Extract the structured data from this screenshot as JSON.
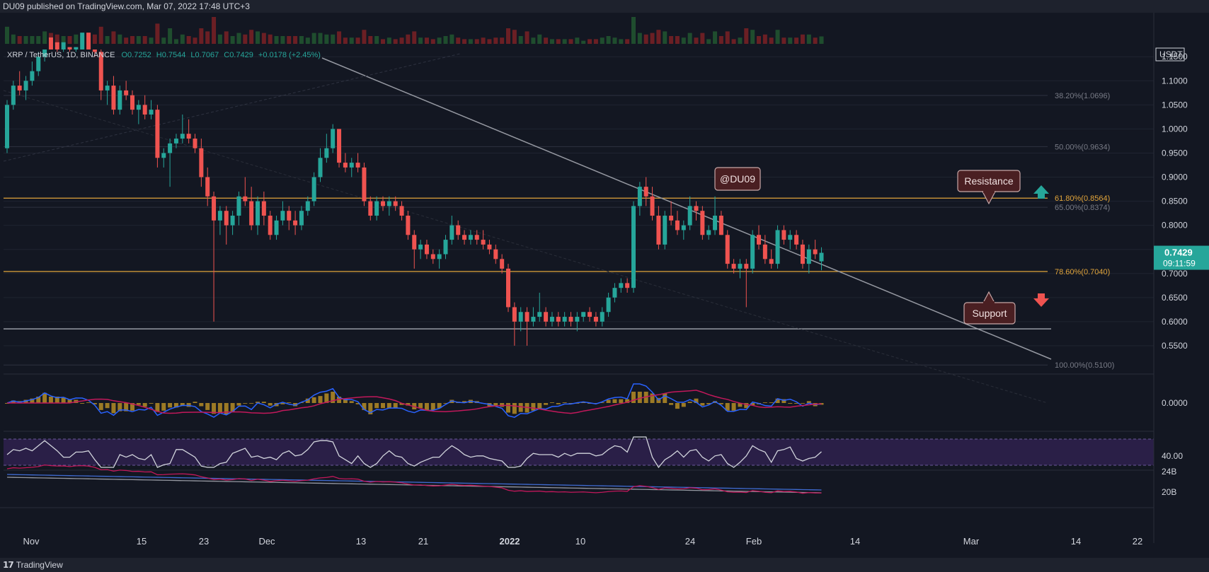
{
  "header": {
    "published": "DU09 published on TradingView.com, Mar 07, 2022 17:48 UTC+3"
  },
  "footer": {
    "brand": "TradingView"
  },
  "legend": {
    "symbol": "XRP / TetherUS, 1D, BINANCE",
    "open": "O0.7252",
    "high": "H0.7544",
    "low": "L0.7067",
    "close": "C0.7429",
    "change": "+0.0178 (+2.45%)"
  },
  "price_axis": {
    "currency": "USDT",
    "ticks": [
      "1.1500",
      "1.1000",
      "1.0500",
      "1.0000",
      "0.9500",
      "0.9000",
      "0.8500",
      "0.8000",
      "0.7500",
      "0.7000",
      "0.6500",
      "0.6000",
      "0.5500"
    ],
    "tick_values": [
      1.15,
      1.1,
      1.05,
      1.0,
      0.95,
      0.9,
      0.85,
      0.8,
      0.75,
      0.7,
      0.65,
      0.6,
      0.55
    ],
    "last_price": "0.7429",
    "countdown": "09:11:59",
    "macd_tick": "0.0000",
    "rsi_tick": "40.00",
    "vol_ticks": [
      "24B",
      "20B"
    ]
  },
  "time_axis": {
    "labels": [
      "Nov",
      "15",
      "23",
      "Dec",
      "13",
      "21",
      "2022",
      "10",
      "24",
      "Feb",
      "14",
      "Mar",
      "14",
      "22"
    ],
    "bold": [
      "2022"
    ]
  },
  "fib_levels": [
    {
      "label": "38.20%(1.0696)",
      "price": 1.0696,
      "color": "#787b86"
    },
    {
      "label": "50.00%(0.9634)",
      "price": 0.9634,
      "color": "#787b86"
    },
    {
      "label": "61.80%(0.8564)",
      "price": 0.8564,
      "color": "#e2a53b"
    },
    {
      "label": "65.00%(0.8374)",
      "price": 0.8374,
      "color": "#787b86"
    },
    {
      "label": "78.60%(0.7040)",
      "price": 0.704,
      "color": "#e2a53b"
    },
    {
      "label": "100.00%(0.5100)",
      "price": 0.51,
      "color": "#787b86"
    }
  ],
  "annotations": {
    "watermark": "@DU09",
    "resistance": "Resistance",
    "support": "Support"
  },
  "colors": {
    "up": "#26a69a",
    "down": "#ef5350",
    "fib": "#e2a53b",
    "bg": "#131722",
    "label_box": "#4a1f22",
    "label_border": "#c7a7a7"
  },
  "chart_data": {
    "type": "candlestick",
    "title": "XRP / TetherUS, 1D, BINANCE",
    "interval": "1D",
    "x_range": [
      "2021-11-01",
      "2022-03-23"
    ],
    "ylim": [
      0.5,
      1.165
    ],
    "note": "",
    "ohlc": [
      [
        0.96,
        1.06,
        0.95,
        1.05
      ],
      [
        1.05,
        1.1,
        1.04,
        1.09
      ],
      [
        1.09,
        1.12,
        1.07,
        1.08
      ],
      [
        1.08,
        1.11,
        1.06,
        1.1
      ],
      [
        1.1,
        1.14,
        1.09,
        1.12
      ],
      [
        1.12,
        1.16,
        1.11,
        1.15
      ],
      [
        1.15,
        1.22,
        1.14,
        1.21
      ],
      [
        1.21,
        1.24,
        1.17,
        1.19
      ],
      [
        1.19,
        1.22,
        1.16,
        1.18
      ],
      [
        1.18,
        1.21,
        1.16,
        1.19
      ],
      [
        1.19,
        1.21,
        1.16,
        1.17
      ],
      [
        1.17,
        1.22,
        1.16,
        1.2
      ],
      [
        1.2,
        1.23,
        1.18,
        1.21
      ],
      [
        1.21,
        1.25,
        1.19,
        1.2
      ],
      [
        1.2,
        1.21,
        1.15,
        1.16
      ],
      [
        1.16,
        1.17,
        1.06,
        1.08
      ],
      [
        1.08,
        1.1,
        1.05,
        1.09
      ],
      [
        1.09,
        1.11,
        1.03,
        1.04
      ],
      [
        1.04,
        1.09,
        1.03,
        1.08
      ],
      [
        1.08,
        1.1,
        1.06,
        1.07
      ],
      [
        1.07,
        1.08,
        1.03,
        1.04
      ],
      [
        1.04,
        1.06,
        1.01,
        1.05
      ],
      [
        1.05,
        1.07,
        1.02,
        1.03
      ],
      [
        1.03,
        1.06,
        1.02,
        1.04
      ],
      [
        1.04,
        1.05,
        0.92,
        0.94
      ],
      [
        0.94,
        0.96,
        0.92,
        0.95
      ],
      [
        0.95,
        0.98,
        0.88,
        0.97
      ],
      [
        0.97,
        0.99,
        0.96,
        0.98
      ],
      [
        0.98,
        1.03,
        0.97,
        0.99
      ],
      [
        0.99,
        1.02,
        0.97,
        0.98
      ],
      [
        0.98,
        0.99,
        0.95,
        0.96
      ],
      [
        0.96,
        0.98,
        0.88,
        0.9
      ],
      [
        0.9,
        0.92,
        0.84,
        0.86
      ],
      [
        0.86,
        0.87,
        0.6,
        0.81
      ],
      [
        0.81,
        0.84,
        0.78,
        0.83
      ],
      [
        0.83,
        0.84,
        0.76,
        0.8
      ],
      [
        0.8,
        0.83,
        0.78,
        0.82
      ],
      [
        0.82,
        0.87,
        0.8,
        0.86
      ],
      [
        0.86,
        0.9,
        0.84,
        0.85
      ],
      [
        0.85,
        0.88,
        0.79,
        0.8
      ],
      [
        0.8,
        0.86,
        0.78,
        0.85
      ],
      [
        0.85,
        0.87,
        0.8,
        0.82
      ],
      [
        0.82,
        0.83,
        0.77,
        0.78
      ],
      [
        0.78,
        0.82,
        0.77,
        0.81
      ],
      [
        0.81,
        0.85,
        0.8,
        0.83
      ],
      [
        0.83,
        0.84,
        0.79,
        0.81
      ],
      [
        0.81,
        0.83,
        0.78,
        0.8
      ],
      [
        0.8,
        0.84,
        0.79,
        0.83
      ],
      [
        0.83,
        0.86,
        0.82,
        0.85
      ],
      [
        0.85,
        0.91,
        0.84,
        0.9
      ],
      [
        0.9,
        0.96,
        0.89,
        0.94
      ],
      [
        0.94,
        0.99,
        0.93,
        0.96
      ],
      [
        0.96,
        1.01,
        0.95,
        1.0
      ],
      [
        1.0,
        1.0,
        0.92,
        0.93
      ],
      [
        0.93,
        0.95,
        0.91,
        0.92
      ],
      [
        0.92,
        0.94,
        0.9,
        0.93
      ],
      [
        0.93,
        0.95,
        0.91,
        0.92
      ],
      [
        0.92,
        0.93,
        0.84,
        0.85
      ],
      [
        0.85,
        0.86,
        0.81,
        0.82
      ],
      [
        0.82,
        0.86,
        0.81,
        0.85
      ],
      [
        0.85,
        0.86,
        0.83,
        0.84
      ],
      [
        0.84,
        0.86,
        0.82,
        0.85
      ],
      [
        0.85,
        0.86,
        0.83,
        0.84
      ],
      [
        0.84,
        0.85,
        0.81,
        0.82
      ],
      [
        0.82,
        0.83,
        0.77,
        0.78
      ],
      [
        0.78,
        0.79,
        0.71,
        0.75
      ],
      [
        0.75,
        0.77,
        0.73,
        0.76
      ],
      [
        0.76,
        0.77,
        0.73,
        0.74
      ],
      [
        0.74,
        0.75,
        0.72,
        0.73
      ],
      [
        0.73,
        0.75,
        0.71,
        0.74
      ],
      [
        0.74,
        0.78,
        0.73,
        0.77
      ],
      [
        0.77,
        0.82,
        0.76,
        0.8
      ],
      [
        0.8,
        0.81,
        0.77,
        0.78
      ],
      [
        0.78,
        0.79,
        0.76,
        0.77
      ],
      [
        0.77,
        0.79,
        0.76,
        0.78
      ],
      [
        0.78,
        0.79,
        0.76,
        0.77
      ],
      [
        0.77,
        0.79,
        0.75,
        0.76
      ],
      [
        0.76,
        0.77,
        0.74,
        0.75
      ],
      [
        0.75,
        0.76,
        0.72,
        0.73
      ],
      [
        0.73,
        0.74,
        0.7,
        0.71
      ],
      [
        0.71,
        0.72,
        0.62,
        0.63
      ],
      [
        0.63,
        0.64,
        0.55,
        0.6
      ],
      [
        0.6,
        0.63,
        0.58,
        0.62
      ],
      [
        0.62,
        0.63,
        0.55,
        0.6
      ],
      [
        0.6,
        0.63,
        0.59,
        0.61
      ],
      [
        0.61,
        0.66,
        0.6,
        0.62
      ],
      [
        0.62,
        0.63,
        0.59,
        0.6
      ],
      [
        0.6,
        0.62,
        0.59,
        0.61
      ],
      [
        0.61,
        0.62,
        0.59,
        0.6
      ],
      [
        0.6,
        0.62,
        0.59,
        0.61
      ],
      [
        0.61,
        0.62,
        0.59,
        0.6
      ],
      [
        0.6,
        0.62,
        0.58,
        0.61
      ],
      [
        0.61,
        0.62,
        0.6,
        0.62
      ],
      [
        0.62,
        0.63,
        0.6,
        0.61
      ],
      [
        0.61,
        0.62,
        0.59,
        0.6
      ],
      [
        0.6,
        0.63,
        0.59,
        0.62
      ],
      [
        0.62,
        0.66,
        0.61,
        0.65
      ],
      [
        0.65,
        0.68,
        0.64,
        0.67
      ],
      [
        0.67,
        0.69,
        0.66,
        0.68
      ],
      [
        0.68,
        0.69,
        0.66,
        0.67
      ],
      [
        0.67,
        0.85,
        0.66,
        0.84
      ],
      [
        0.84,
        0.89,
        0.82,
        0.88
      ],
      [
        0.88,
        0.9,
        0.84,
        0.86
      ],
      [
        0.86,
        0.88,
        0.81,
        0.82
      ],
      [
        0.82,
        0.84,
        0.75,
        0.76
      ],
      [
        0.76,
        0.83,
        0.75,
        0.82
      ],
      [
        0.82,
        0.85,
        0.8,
        0.81
      ],
      [
        0.81,
        0.83,
        0.78,
        0.79
      ],
      [
        0.79,
        0.81,
        0.77,
        0.8
      ],
      [
        0.8,
        0.86,
        0.79,
        0.84
      ],
      [
        0.84,
        0.85,
        0.81,
        0.83
      ],
      [
        0.83,
        0.84,
        0.77,
        0.78
      ],
      [
        0.78,
        0.8,
        0.77,
        0.79
      ],
      [
        0.79,
        0.86,
        0.78,
        0.82
      ],
      [
        0.82,
        0.83,
        0.78,
        0.78
      ],
      [
        0.78,
        0.79,
        0.71,
        0.72
      ],
      [
        0.72,
        0.73,
        0.7,
        0.71
      ],
      [
        0.71,
        0.73,
        0.69,
        0.72
      ],
      [
        0.72,
        0.73,
        0.63,
        0.71
      ],
      [
        0.71,
        0.79,
        0.7,
        0.78
      ],
      [
        0.78,
        0.8,
        0.75,
        0.76
      ],
      [
        0.76,
        0.78,
        0.72,
        0.73
      ],
      [
        0.73,
        0.75,
        0.71,
        0.72
      ],
      [
        0.72,
        0.8,
        0.71,
        0.79
      ],
      [
        0.79,
        0.8,
        0.76,
        0.77
      ],
      [
        0.77,
        0.79,
        0.75,
        0.78
      ],
      [
        0.78,
        0.79,
        0.75,
        0.76
      ],
      [
        0.76,
        0.77,
        0.71,
        0.72
      ],
      [
        0.72,
        0.76,
        0.7,
        0.75
      ],
      [
        0.75,
        0.77,
        0.73,
        0.74
      ],
      [
        0.7252,
        0.7544,
        0.7067,
        0.7429
      ]
    ]
  }
}
